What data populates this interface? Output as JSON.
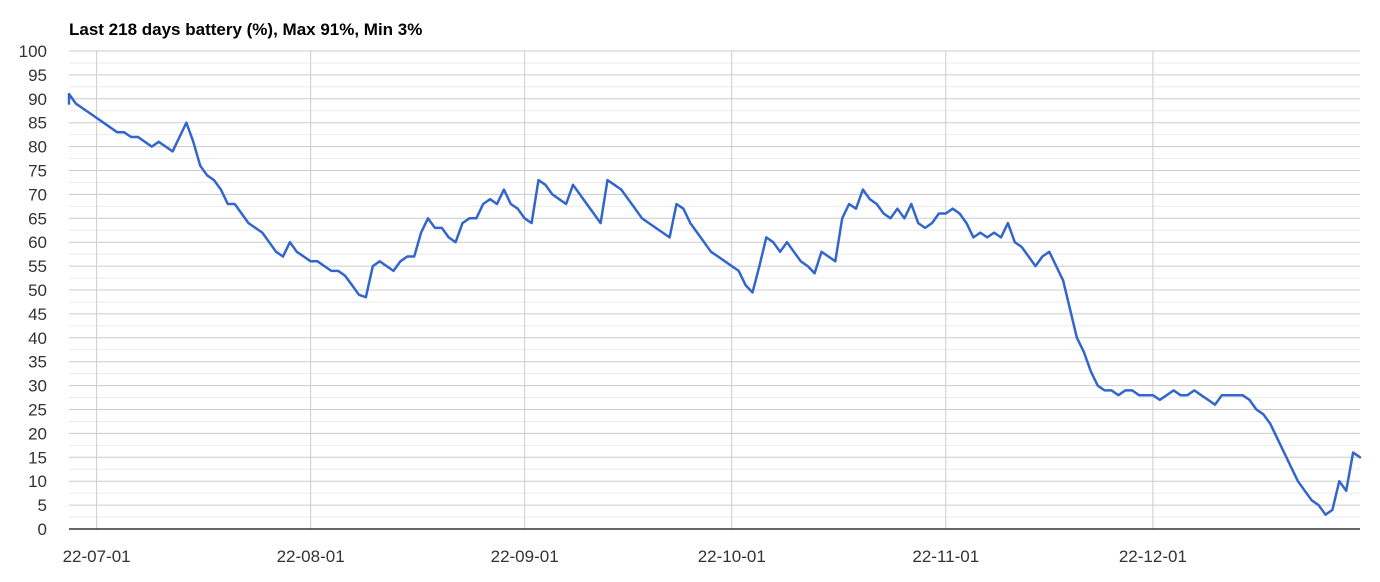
{
  "chart_data": {
    "type": "line",
    "title": "Last 218 days battery (%), Max 91%, Min 3%",
    "xlabel": "",
    "ylabel": "",
    "x_range": [
      "2022-06-27",
      "2022-12-31"
    ],
    "x_ticks": [
      {
        "date": "2022-07-01",
        "label": "22-07-01"
      },
      {
        "date": "2022-08-01",
        "label": "22-08-01"
      },
      {
        "date": "2022-09-01",
        "label": "22-09-01"
      },
      {
        "date": "2022-10-01",
        "label": "22-10-01"
      },
      {
        "date": "2022-11-01",
        "label": "22-11-01"
      },
      {
        "date": "2022-12-01",
        "label": "22-12-01"
      }
    ],
    "ylim": [
      0,
      100
    ],
    "y_ticks": [
      0,
      5,
      10,
      15,
      20,
      25,
      30,
      35,
      40,
      45,
      50,
      55,
      60,
      65,
      70,
      75,
      80,
      85,
      90,
      95,
      100
    ],
    "minor_y_step": 2.5,
    "grid": true,
    "line_color": "#3366cc",
    "grid_color": "#cccccc",
    "minor_grid_color": "#ebebeb",
    "series": [
      {
        "values": [
          [
            "2022-06-27",
            89
          ],
          [
            "2022-06-27",
            91
          ],
          [
            "2022-06-28",
            89
          ],
          [
            "2022-06-29",
            88
          ],
          [
            "2022-06-30",
            87
          ],
          [
            "2022-07-01",
            86
          ],
          [
            "2022-07-02",
            85
          ],
          [
            "2022-07-03",
            84
          ],
          [
            "2022-07-04",
            83
          ],
          [
            "2022-07-05",
            83
          ],
          [
            "2022-07-06",
            82
          ],
          [
            "2022-07-07",
            82
          ],
          [
            "2022-07-08",
            81
          ],
          [
            "2022-07-09",
            80
          ],
          [
            "2022-07-10",
            81
          ],
          [
            "2022-07-11",
            80
          ],
          [
            "2022-07-12",
            79
          ],
          [
            "2022-07-13",
            82
          ],
          [
            "2022-07-14",
            85
          ],
          [
            "2022-07-15",
            81
          ],
          [
            "2022-07-16",
            76
          ],
          [
            "2022-07-17",
            74
          ],
          [
            "2022-07-18",
            73
          ],
          [
            "2022-07-19",
            71
          ],
          [
            "2022-07-20",
            68
          ],
          [
            "2022-07-21",
            68
          ],
          [
            "2022-07-22",
            66
          ],
          [
            "2022-07-23",
            64
          ],
          [
            "2022-07-24",
            63
          ],
          [
            "2022-07-25",
            62
          ],
          [
            "2022-07-26",
            60
          ],
          [
            "2022-07-27",
            58
          ],
          [
            "2022-07-28",
            57
          ],
          [
            "2022-07-29",
            60
          ],
          [
            "2022-07-30",
            58
          ],
          [
            "2022-07-31",
            57
          ],
          [
            "2022-08-01",
            56
          ],
          [
            "2022-08-02",
            56
          ],
          [
            "2022-08-03",
            55
          ],
          [
            "2022-08-04",
            54
          ],
          [
            "2022-08-05",
            54
          ],
          [
            "2022-08-06",
            53
          ],
          [
            "2022-08-07",
            51
          ],
          [
            "2022-08-08",
            49
          ],
          [
            "2022-08-09",
            48.5
          ],
          [
            "2022-08-10",
            55
          ],
          [
            "2022-08-11",
            56
          ],
          [
            "2022-08-12",
            55
          ],
          [
            "2022-08-13",
            54
          ],
          [
            "2022-08-14",
            56
          ],
          [
            "2022-08-15",
            57
          ],
          [
            "2022-08-16",
            57
          ],
          [
            "2022-08-17",
            62
          ],
          [
            "2022-08-18",
            65
          ],
          [
            "2022-08-19",
            63
          ],
          [
            "2022-08-20",
            63
          ],
          [
            "2022-08-21",
            61
          ],
          [
            "2022-08-22",
            60
          ],
          [
            "2022-08-23",
            64
          ],
          [
            "2022-08-24",
            65
          ],
          [
            "2022-08-25",
            65
          ],
          [
            "2022-08-26",
            68
          ],
          [
            "2022-08-27",
            69
          ],
          [
            "2022-08-28",
            68
          ],
          [
            "2022-08-29",
            71
          ],
          [
            "2022-08-30",
            68
          ],
          [
            "2022-08-31",
            67
          ],
          [
            "2022-09-01",
            65
          ],
          [
            "2022-09-02",
            64
          ],
          [
            "2022-09-03",
            73
          ],
          [
            "2022-09-04",
            72
          ],
          [
            "2022-09-05",
            70
          ],
          [
            "2022-09-06",
            69
          ],
          [
            "2022-09-07",
            68
          ],
          [
            "2022-09-08",
            72
          ],
          [
            "2022-09-09",
            70
          ],
          [
            "2022-09-10",
            68
          ],
          [
            "2022-09-11",
            66
          ],
          [
            "2022-09-12",
            64
          ],
          [
            "2022-09-13",
            73
          ],
          [
            "2022-09-14",
            72
          ],
          [
            "2022-09-15",
            71
          ],
          [
            "2022-09-16",
            69
          ],
          [
            "2022-09-17",
            67
          ],
          [
            "2022-09-18",
            65
          ],
          [
            "2022-09-19",
            64
          ],
          [
            "2022-09-20",
            63
          ],
          [
            "2022-09-21",
            62
          ],
          [
            "2022-09-22",
            61
          ],
          [
            "2022-09-23",
            68
          ],
          [
            "2022-09-24",
            67
          ],
          [
            "2022-09-25",
            64
          ],
          [
            "2022-09-26",
            62
          ],
          [
            "2022-09-27",
            60
          ],
          [
            "2022-09-28",
            58
          ],
          [
            "2022-09-29",
            57
          ],
          [
            "2022-09-30",
            56
          ],
          [
            "2022-10-01",
            55
          ],
          [
            "2022-10-02",
            54
          ],
          [
            "2022-10-03",
            51
          ],
          [
            "2022-10-04",
            49.5
          ],
          [
            "2022-10-05",
            55
          ],
          [
            "2022-10-06",
            61
          ],
          [
            "2022-10-07",
            60
          ],
          [
            "2022-10-08",
            58
          ],
          [
            "2022-10-09",
            60
          ],
          [
            "2022-10-10",
            58
          ],
          [
            "2022-10-11",
            56
          ],
          [
            "2022-10-12",
            55
          ],
          [
            "2022-10-13",
            53.5
          ],
          [
            "2022-10-14",
            58
          ],
          [
            "2022-10-15",
            57
          ],
          [
            "2022-10-16",
            56
          ],
          [
            "2022-10-17",
            65
          ],
          [
            "2022-10-18",
            68
          ],
          [
            "2022-10-19",
            67
          ],
          [
            "2022-10-20",
            71
          ],
          [
            "2022-10-21",
            69
          ],
          [
            "2022-10-22",
            68
          ],
          [
            "2022-10-23",
            66
          ],
          [
            "2022-10-24",
            65
          ],
          [
            "2022-10-25",
            67
          ],
          [
            "2022-10-26",
            65
          ],
          [
            "2022-10-27",
            68
          ],
          [
            "2022-10-28",
            64
          ],
          [
            "2022-10-29",
            63
          ],
          [
            "2022-10-30",
            64
          ],
          [
            "2022-10-31",
            66
          ],
          [
            "2022-11-01",
            66
          ],
          [
            "2022-11-02",
            67
          ],
          [
            "2022-11-03",
            66
          ],
          [
            "2022-11-04",
            64
          ],
          [
            "2022-11-05",
            61
          ],
          [
            "2022-11-06",
            62
          ],
          [
            "2022-11-07",
            61
          ],
          [
            "2022-11-08",
            62
          ],
          [
            "2022-11-09",
            61
          ],
          [
            "2022-11-10",
            64
          ],
          [
            "2022-11-11",
            60
          ],
          [
            "2022-11-12",
            59
          ],
          [
            "2022-11-13",
            57
          ],
          [
            "2022-11-14",
            55
          ],
          [
            "2022-11-15",
            57
          ],
          [
            "2022-11-16",
            58
          ],
          [
            "2022-11-17",
            55
          ],
          [
            "2022-11-18",
            52
          ],
          [
            "2022-11-19",
            46
          ],
          [
            "2022-11-20",
            40
          ],
          [
            "2022-11-21",
            37
          ],
          [
            "2022-11-22",
            33
          ],
          [
            "2022-11-23",
            30
          ],
          [
            "2022-11-24",
            29
          ],
          [
            "2022-11-25",
            29
          ],
          [
            "2022-11-26",
            28
          ],
          [
            "2022-11-27",
            29
          ],
          [
            "2022-11-28",
            29
          ],
          [
            "2022-11-29",
            28
          ],
          [
            "2022-11-30",
            28
          ],
          [
            "2022-12-01",
            28
          ],
          [
            "2022-12-02",
            27
          ],
          [
            "2022-12-03",
            28
          ],
          [
            "2022-12-04",
            29
          ],
          [
            "2022-12-05",
            28
          ],
          [
            "2022-12-06",
            28
          ],
          [
            "2022-12-07",
            29
          ],
          [
            "2022-12-08",
            28
          ],
          [
            "2022-12-09",
            27
          ],
          [
            "2022-12-10",
            26
          ],
          [
            "2022-12-11",
            28
          ],
          [
            "2022-12-12",
            28
          ],
          [
            "2022-12-13",
            28
          ],
          [
            "2022-12-14",
            28
          ],
          [
            "2022-12-15",
            27
          ],
          [
            "2022-12-16",
            25
          ],
          [
            "2022-12-17",
            24
          ],
          [
            "2022-12-18",
            22
          ],
          [
            "2022-12-19",
            19
          ],
          [
            "2022-12-20",
            16
          ],
          [
            "2022-12-21",
            13
          ],
          [
            "2022-12-22",
            10
          ],
          [
            "2022-12-23",
            8
          ],
          [
            "2022-12-24",
            6
          ],
          [
            "2022-12-25",
            5
          ],
          [
            "2022-12-26",
            3
          ],
          [
            "2022-12-27",
            4
          ],
          [
            "2022-12-28",
            10
          ],
          [
            "2022-12-29",
            8
          ],
          [
            "2022-12-30",
            16
          ],
          [
            "2022-12-31",
            15
          ]
        ]
      }
    ]
  }
}
